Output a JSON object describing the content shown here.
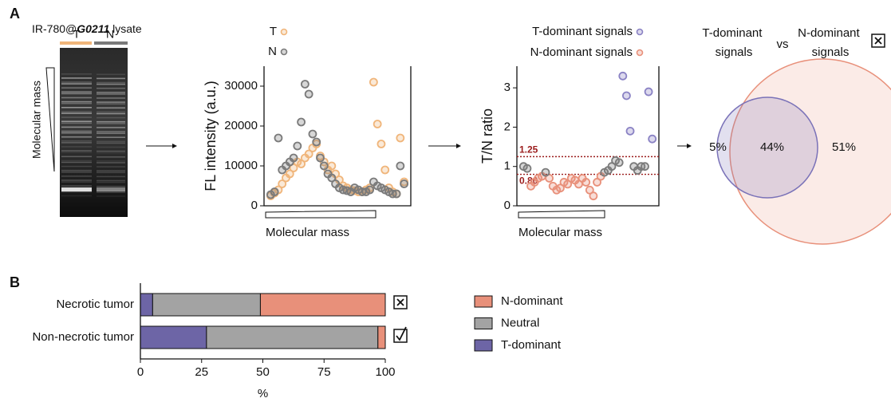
{
  "labels": {
    "panel_a": "A",
    "panel_b": "B",
    "lysate_prefix": "IR-780@",
    "lysate_compound": "G0211",
    "lysate_suffix": " lysate",
    "lane_t": "T",
    "lane_n": "N",
    "gel_axis": "Molecular mass"
  },
  "chart_data": [
    {
      "type": "scatter",
      "y_label": "FL intensity (a.u.)",
      "x_label": "Molecular mass",
      "ylim": [
        0,
        35000
      ],
      "yticks": [
        0,
        10000,
        20000,
        30000
      ],
      "series": [
        {
          "name": "T",
          "color": "#f0b57a",
          "values": [
            2500,
            3200,
            4000,
            5500,
            7000,
            8000,
            9500,
            11000,
            10500,
            12000,
            13000,
            14500,
            15500,
            12500,
            11000,
            9000,
            10000,
            8000,
            6500,
            5000,
            4500,
            4000,
            3800,
            3500,
            3500,
            4000,
            4500,
            31000,
            20500,
            15500,
            9000,
            4500,
            3500,
            3000,
            17000,
            6000
          ]
        },
        {
          "name": "N",
          "color": "#7a7a7a",
          "values": [
            2800,
            3500,
            17000,
            9000,
            10000,
            11000,
            12000,
            15000,
            21000,
            30500,
            28000,
            18000,
            16000,
            12000,
            10000,
            8000,
            7000,
            5500,
            4500,
            4000,
            3800,
            3500,
            4500,
            4000,
            3500,
            3500,
            4000,
            6000,
            5000,
            4500,
            4000,
            3500,
            3000,
            3000,
            10000,
            5500
          ]
        }
      ]
    },
    {
      "type": "scatter",
      "y_label": "T/N ratio",
      "x_label": "Molecular mass",
      "ylim": [
        0,
        3.55
      ],
      "yticks": [
        0,
        1,
        2,
        3
      ],
      "thresholds": [
        1.25,
        {
          "value": 0.8,
          "label": "0.80"
        }
      ],
      "threshold_color": "#9b1c1c",
      "series": [
        {
          "name": "T-dominant signals",
          "color": "#8a82c4",
          "values": [
            null,
            null,
            null,
            null,
            null,
            null,
            null,
            null,
            null,
            null,
            null,
            null,
            null,
            null,
            null,
            null,
            null,
            null,
            null,
            null,
            null,
            null,
            null,
            null,
            null,
            null,
            null,
            3.3,
            2.8,
            1.9,
            null,
            null,
            null,
            null,
            2.9,
            1.7
          ]
        },
        {
          "name": "N-dominant signals",
          "color": "#e8907a",
          "values": [
            null,
            null,
            0.5,
            0.6,
            0.7,
            0.75,
            null,
            0.7,
            0.5,
            0.4,
            0.45,
            0.6,
            0.55,
            0.7,
            0.65,
            0.55,
            0.7,
            0.6,
            0.4,
            0.25,
            0.6,
            0.75,
            null,
            null,
            null,
            null,
            null,
            null,
            null,
            null,
            null,
            null,
            null,
            null,
            null,
            null
          ]
        },
        {
          "color": "#7a7a7a",
          "values": [
            1.0,
            0.95,
            null,
            null,
            null,
            null,
            0.85,
            null,
            null,
            null,
            null,
            null,
            null,
            null,
            null,
            null,
            null,
            null,
            null,
            null,
            null,
            null,
            0.85,
            0.9,
            1.0,
            1.15,
            1.1,
            null,
            null,
            null,
            1.0,
            0.9,
            1.0,
            1.0,
            null,
            null
          ]
        }
      ]
    },
    {
      "type": "venn",
      "set_labels": [
        "T-dominant signals",
        "N-dominant signals"
      ],
      "connector": "vs",
      "colors": [
        "#7a72b8",
        "#e8907a"
      ],
      "values": [
        5,
        44,
        51
      ],
      "value_labels": [
        "5%",
        "44%",
        "51%"
      ]
    },
    {
      "type": "bar",
      "orientation": "horizontal",
      "stacked": true,
      "x_label": "%",
      "categories": [
        "Necrotic tumor",
        "Non-necrotic tumor"
      ],
      "xlim": [
        0,
        100
      ],
      "xticks": [
        0,
        25,
        50,
        75,
        100
      ],
      "series": [
        {
          "name": "T-dominant",
          "color": "#6d65a6",
          "values": [
            5,
            27
          ]
        },
        {
          "name": "Neutral",
          "color": "#a3a3a3",
          "values": [
            44,
            70
          ]
        },
        {
          "name": "N-dominant",
          "color": "#e8907a",
          "values": [
            51,
            3
          ]
        }
      ]
    }
  ]
}
